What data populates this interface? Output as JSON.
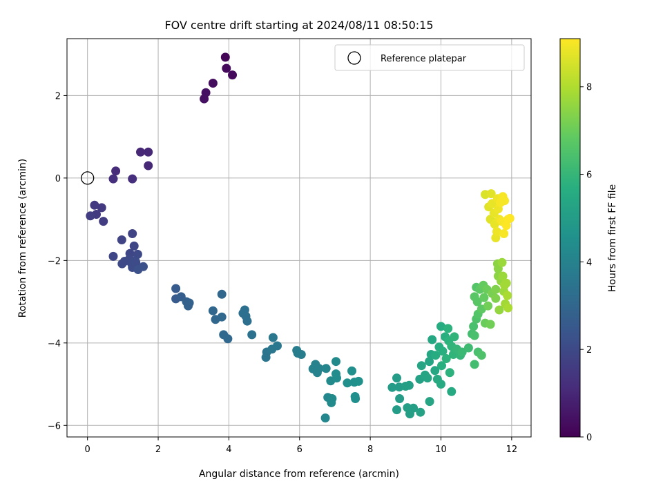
{
  "chart_data": {
    "type": "scatter",
    "title": "FOV centre drift starting at 2024/08/11 08:50:15",
    "xlabel": "Angular distance from reference (arcmin)",
    "ylabel": "Rotation from reference (arcmin)",
    "xlim": [
      -0.58,
      12.55
    ],
    "ylim": [
      -6.28,
      3.38
    ],
    "xticks": [
      0,
      2,
      4,
      6,
      8,
      10,
      12
    ],
    "yticks": [
      -6,
      -4,
      -2,
      0,
      2
    ],
    "grid": true,
    "legend": {
      "placement": "top-right",
      "entries": [
        "Reference platepar"
      ]
    },
    "reference_point": {
      "x": 0,
      "y": 0
    },
    "colorbar": {
      "label": "Hours from first FF file",
      "range": [
        0,
        9.1
      ],
      "ticks": [
        0,
        2,
        4,
        6,
        8
      ],
      "colormap": "viridis"
    },
    "series": [
      {
        "points": [
          [
            3.9,
            2.93,
            0.1
          ],
          [
            3.93,
            2.66,
            0.2
          ],
          [
            4.1,
            2.5,
            0.2
          ],
          [
            3.55,
            2.3,
            0.3
          ],
          [
            3.35,
            2.07,
            0.4
          ],
          [
            3.3,
            1.92,
            0.4
          ],
          [
            1.5,
            0.63,
            1.0
          ],
          [
            1.72,
            0.63,
            1.0
          ],
          [
            1.72,
            0.3,
            1.0
          ],
          [
            0.8,
            0.17,
            1.1
          ],
          [
            0.73,
            -0.02,
            1.2
          ],
          [
            1.27,
            -0.02,
            1.2
          ],
          [
            0.2,
            -0.66,
            1.5
          ],
          [
            0.4,
            -0.72,
            1.5
          ],
          [
            0.25,
            -0.88,
            1.5
          ],
          [
            0.08,
            -0.92,
            1.6
          ],
          [
            0.45,
            -1.05,
            1.6
          ],
          [
            1.27,
            -1.35,
            1.8
          ],
          [
            0.97,
            -1.5,
            1.8
          ],
          [
            1.32,
            -1.65,
            1.9
          ],
          [
            0.73,
            -1.9,
            1.9
          ],
          [
            1.2,
            -1.83,
            1.9
          ],
          [
            1.42,
            -1.85,
            2.0
          ],
          [
            1.05,
            -2.02,
            2.0
          ],
          [
            1.18,
            -1.97,
            2.0
          ],
          [
            0.98,
            -2.08,
            2.0
          ],
          [
            1.25,
            -2.08,
            2.1
          ],
          [
            1.37,
            -2.05,
            2.1
          ],
          [
            1.27,
            -2.17,
            2.1
          ],
          [
            1.43,
            -2.22,
            2.2
          ],
          [
            1.58,
            -2.15,
            2.2
          ],
          [
            1.35,
            -2.0,
            2.1
          ],
          [
            2.5,
            -2.68,
            2.6
          ],
          [
            2.5,
            -2.93,
            2.6
          ],
          [
            2.65,
            -2.88,
            2.7
          ],
          [
            2.8,
            -3.0,
            2.8
          ],
          [
            2.88,
            -3.03,
            2.8
          ],
          [
            2.85,
            -3.1,
            2.8
          ],
          [
            3.8,
            -2.82,
            3.0
          ],
          [
            3.55,
            -3.22,
            3.0
          ],
          [
            3.62,
            -3.43,
            3.0
          ],
          [
            3.8,
            -3.37,
            3.1
          ],
          [
            3.85,
            -3.8,
            3.1
          ],
          [
            3.97,
            -3.9,
            3.1
          ],
          [
            4.45,
            -3.2,
            3.3
          ],
          [
            4.4,
            -3.28,
            3.3
          ],
          [
            4.48,
            -3.35,
            3.3
          ],
          [
            4.52,
            -3.47,
            3.3
          ],
          [
            4.65,
            -3.8,
            3.4
          ],
          [
            5.07,
            -4.22,
            3.5
          ],
          [
            5.05,
            -4.35,
            3.5
          ],
          [
            5.25,
            -3.87,
            3.6
          ],
          [
            5.22,
            -4.15,
            3.6
          ],
          [
            5.37,
            -4.07,
            3.6
          ],
          [
            5.92,
            -4.18,
            3.8
          ],
          [
            5.95,
            -4.25,
            3.8
          ],
          [
            6.05,
            -4.28,
            3.8
          ],
          [
            6.45,
            -4.52,
            4.0
          ],
          [
            6.38,
            -4.63,
            4.0
          ],
          [
            6.5,
            -4.72,
            4.0
          ],
          [
            6.55,
            -4.62,
            4.0
          ],
          [
            6.75,
            -4.62,
            4.1
          ],
          [
            6.8,
            -5.32,
            4.2
          ],
          [
            6.73,
            -5.82,
            4.2
          ],
          [
            6.92,
            -5.35,
            4.3
          ],
          [
            6.9,
            -5.45,
            4.3
          ],
          [
            6.88,
            -4.92,
            4.3
          ],
          [
            7.03,
            -4.45,
            4.3
          ],
          [
            7.03,
            -4.75,
            4.4
          ],
          [
            7.05,
            -4.85,
            4.4
          ],
          [
            7.35,
            -4.97,
            4.5
          ],
          [
            7.48,
            -4.68,
            4.5
          ],
          [
            7.55,
            -4.95,
            4.5
          ],
          [
            7.57,
            -5.3,
            4.5
          ],
          [
            7.58,
            -5.35,
            4.5
          ],
          [
            7.67,
            -4.93,
            4.6
          ],
          [
            8.62,
            -5.08,
            5.0
          ],
          [
            8.75,
            -4.85,
            5.0
          ],
          [
            8.82,
            -5.07,
            5.0
          ],
          [
            8.83,
            -5.35,
            5.0
          ],
          [
            8.75,
            -5.62,
            5.0
          ],
          [
            9.05,
            -5.57,
            5.1
          ],
          [
            9.12,
            -5.72,
            5.1
          ],
          [
            9.22,
            -5.58,
            5.1
          ],
          [
            9.0,
            -5.05,
            5.1
          ],
          [
            9.1,
            -5.03,
            5.1
          ],
          [
            9.42,
            -5.68,
            5.2
          ],
          [
            9.4,
            -4.88,
            5.2
          ],
          [
            9.45,
            -4.55,
            5.3
          ],
          [
            9.55,
            -4.78,
            5.3
          ],
          [
            9.62,
            -4.85,
            5.3
          ],
          [
            9.68,
            -5.42,
            5.3
          ],
          [
            9.67,
            -4.45,
            5.3
          ],
          [
            9.75,
            -3.92,
            5.4
          ],
          [
            9.72,
            -4.28,
            5.4
          ],
          [
            9.83,
            -4.67,
            5.4
          ],
          [
            9.9,
            -4.88,
            5.5
          ],
          [
            10.0,
            -5.0,
            5.5
          ],
          [
            10.3,
            -5.18,
            5.5
          ],
          [
            9.85,
            -4.3,
            5.6
          ],
          [
            9.95,
            -4.1,
            5.6
          ],
          [
            10.0,
            -3.6,
            5.6
          ],
          [
            10.02,
            -4.55,
            5.7
          ],
          [
            10.05,
            -4.2,
            5.7
          ],
          [
            10.12,
            -3.85,
            5.7
          ],
          [
            10.15,
            -4.38,
            5.8
          ],
          [
            10.2,
            -3.65,
            5.8
          ],
          [
            10.22,
            -3.95,
            5.8
          ],
          [
            10.25,
            -4.72,
            5.8
          ],
          [
            10.3,
            -4.08,
            5.9
          ],
          [
            10.35,
            -4.28,
            5.9
          ],
          [
            10.38,
            -3.85,
            5.9
          ],
          [
            10.45,
            -4.15,
            6.0
          ],
          [
            10.55,
            -4.3,
            6.0
          ],
          [
            10.6,
            -4.22,
            6.1
          ],
          [
            10.78,
            -4.12,
            6.2
          ],
          [
            10.88,
            -3.78,
            6.3
          ],
          [
            10.92,
            -3.6,
            6.4
          ],
          [
            10.95,
            -3.82,
            6.4
          ],
          [
            11.0,
            -3.42,
            6.5
          ],
          [
            10.95,
            -4.52,
            6.3
          ],
          [
            11.05,
            -4.22,
            6.4
          ],
          [
            11.15,
            -4.3,
            6.5
          ],
          [
            11.05,
            -3.3,
            6.6
          ],
          [
            11.0,
            -2.65,
            6.6
          ],
          [
            10.95,
            -2.88,
            6.7
          ],
          [
            11.03,
            -3.0,
            6.7
          ],
          [
            11.1,
            -2.7,
            6.8
          ],
          [
            11.15,
            -3.18,
            6.8
          ],
          [
            11.2,
            -2.6,
            6.9
          ],
          [
            11.22,
            -2.9,
            6.9
          ],
          [
            11.25,
            -3.52,
            7.0
          ],
          [
            11.3,
            -2.7,
            7.0
          ],
          [
            11.33,
            -3.1,
            7.1
          ],
          [
            11.4,
            -3.55,
            7.1
          ],
          [
            11.45,
            -2.8,
            7.2
          ],
          [
            11.55,
            -2.7,
            7.3
          ],
          [
            11.55,
            -2.92,
            7.3
          ],
          [
            11.6,
            -2.08,
            7.5
          ],
          [
            11.62,
            -2.2,
            7.5
          ],
          [
            11.62,
            -2.38,
            7.5
          ],
          [
            11.65,
            -3.2,
            7.6
          ],
          [
            11.7,
            -2.5,
            7.6
          ],
          [
            11.73,
            -2.05,
            7.7
          ],
          [
            11.75,
            -2.38,
            7.7
          ],
          [
            11.78,
            -2.75,
            7.7
          ],
          [
            11.8,
            -2.6,
            7.8
          ],
          [
            11.82,
            -3.05,
            7.8
          ],
          [
            11.85,
            -2.55,
            7.8
          ],
          [
            11.88,
            -2.85,
            7.9
          ],
          [
            11.9,
            -3.15,
            7.9
          ],
          [
            11.25,
            -0.4,
            8.6
          ],
          [
            11.42,
            -0.38,
            8.7
          ],
          [
            11.35,
            -0.7,
            8.7
          ],
          [
            11.4,
            -1.0,
            8.7
          ],
          [
            11.45,
            -0.62,
            8.8
          ],
          [
            11.5,
            -0.85,
            8.8
          ],
          [
            11.52,
            -1.12,
            8.8
          ],
          [
            11.55,
            -1.45,
            8.8
          ],
          [
            11.58,
            -1.3,
            8.9
          ],
          [
            11.6,
            -0.5,
            8.9
          ],
          [
            11.62,
            -0.75,
            8.9
          ],
          [
            11.65,
            -1.0,
            8.9
          ],
          [
            11.68,
            -0.6,
            9.0
          ],
          [
            11.72,
            -1.05,
            9.0
          ],
          [
            11.75,
            -0.45,
            9.0
          ],
          [
            11.78,
            -1.35,
            9.0
          ],
          [
            11.8,
            -0.55,
            9.0
          ],
          [
            11.85,
            -1.15,
            9.1
          ],
          [
            11.9,
            -1.0,
            9.1
          ],
          [
            11.95,
            -0.98,
            9.1
          ]
        ]
      }
    ]
  }
}
